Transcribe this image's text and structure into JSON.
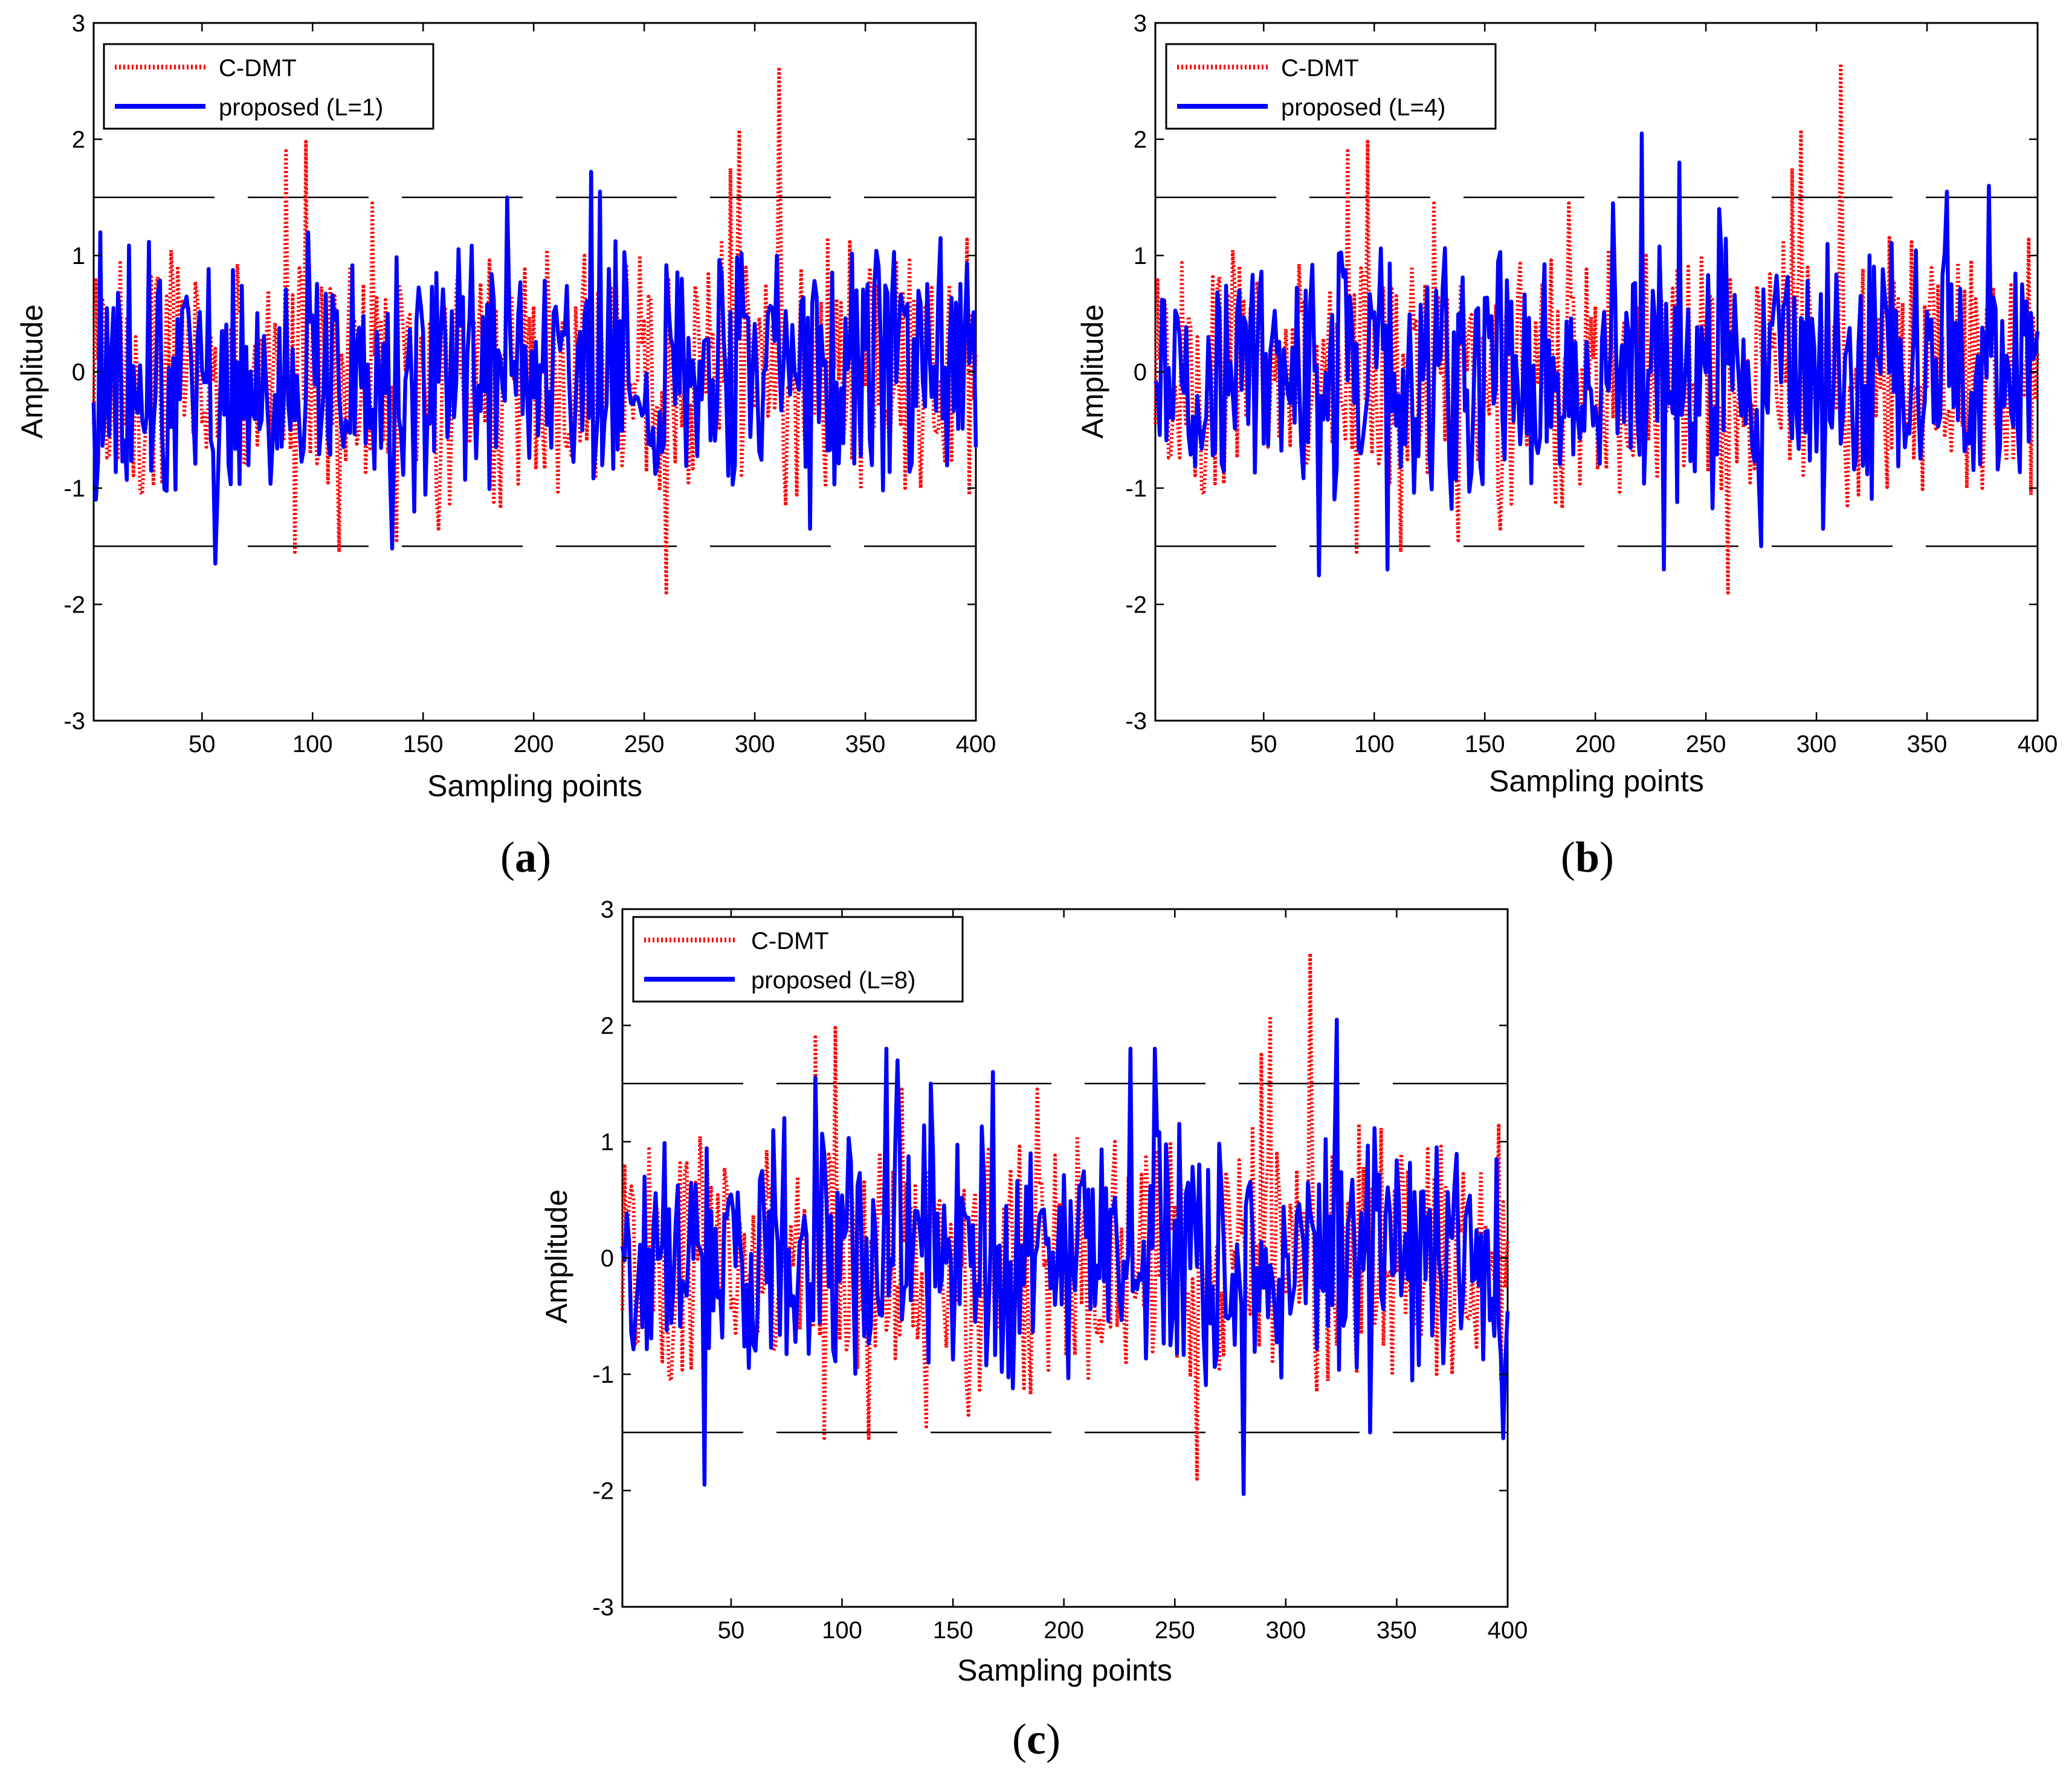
{
  "figure": {
    "panels": [
      {
        "id": "a",
        "caption": {
          "open": "(",
          "letter": "a",
          "close": ")"
        },
        "legend": [
          "C-DMT",
          "proposed (L=1)"
        ]
      },
      {
        "id": "b",
        "caption": {
          "open": "(",
          "letter": "b",
          "close": ")"
        },
        "legend": [
          "C-DMT",
          "proposed (L=4)"
        ]
      },
      {
        "id": "c",
        "caption": {
          "open": "(",
          "letter": "c",
          "close": ")"
        },
        "legend": [
          "C-DMT",
          "proposed (L=8)"
        ]
      }
    ],
    "colors": {
      "cdmt": "#ff0000",
      "proposed": "#0000ff",
      "threshold": "#000000",
      "axes": "#000000"
    }
  },
  "chart_data": [
    {
      "type": "line",
      "title": "",
      "xlabel": "Sampling points",
      "ylabel": "Amplitude",
      "xlim": [
        1,
        400
      ],
      "ylim": [
        -3,
        3
      ],
      "xticks": [
        50,
        100,
        150,
        200,
        250,
        300,
        350,
        400
      ],
      "yticks": [
        -3,
        -2,
        -1,
        0,
        1,
        2,
        3
      ],
      "legend": "top-left",
      "thresholds": [
        1.5,
        -1.5
      ],
      "series": [
        {
          "name": "C-DMT",
          "style": "dotted",
          "color": "#ff0000",
          "seed": 101,
          "peaks": [
            [
              88,
              1.9
            ],
            [
              92,
              -1.55
            ],
            [
              97,
              1.98
            ],
            [
              112,
              -1.55
            ],
            [
              127,
              1.45
            ],
            [
              138,
              -1.45
            ],
            [
              157,
              -1.35
            ],
            [
              188,
              1.45
            ],
            [
              223,
              1.0
            ],
            [
              248,
              1.0
            ],
            [
              260,
              -1.9
            ],
            [
              289,
              1.75
            ],
            [
              293,
              2.08
            ],
            [
              311,
              2.62
            ],
            [
              314,
              -1.15
            ]
          ]
        },
        {
          "name": "proposed (L=1)",
          "style": "solid",
          "color": "#0000ff",
          "seed": 202,
          "peaks": [
            [
              2,
              -1.1
            ],
            [
              4,
              1.2
            ],
            [
              56,
              -1.65
            ],
            [
              98,
              1.2
            ],
            [
              136,
              -1.52
            ],
            [
              188,
              1.5
            ],
            [
              226,
              1.72
            ],
            [
              230,
              1.55
            ],
            [
              310,
              1.0
            ],
            [
              325,
              -1.35
            ],
            [
              384,
              1.15
            ]
          ]
        }
      ]
    },
    {
      "type": "line",
      "title": "",
      "xlabel": "Sampling points",
      "ylabel": "Amplitude",
      "xlim": [
        1,
        400
      ],
      "ylim": [
        -3,
        3
      ],
      "xticks": [
        50,
        100,
        150,
        200,
        250,
        300,
        350,
        400
      ],
      "yticks": [
        -3,
        -2,
        -1,
        0,
        1,
        2,
        3
      ],
      "legend": "top-left",
      "thresholds": [
        1.5,
        -1.5
      ],
      "series": [
        {
          "name": "C-DMT",
          "style": "dotted",
          "color": "#ff0000",
          "seed": 101,
          "peaks": [
            [
              88,
              1.9
            ],
            [
              92,
              -1.55
            ],
            [
              97,
              1.98
            ],
            [
              112,
              -1.55
            ],
            [
              127,
              1.45
            ],
            [
              138,
              -1.45
            ],
            [
              157,
              -1.35
            ],
            [
              188,
              1.45
            ],
            [
              223,
              1.0
            ],
            [
              248,
              1.0
            ],
            [
              260,
              -1.9
            ],
            [
              289,
              1.75
            ],
            [
              293,
              2.08
            ],
            [
              311,
              2.65
            ],
            [
              314,
              -1.15
            ]
          ]
        },
        {
          "name": "proposed (L=4)",
          "style": "solid",
          "color": "#0000ff",
          "seed": 303,
          "peaks": [
            [
              75,
              -1.75
            ],
            [
              106,
              -1.7
            ],
            [
              208,
              1.45
            ],
            [
              221,
              2.05
            ],
            [
              231,
              -1.7
            ],
            [
              238,
              1.8
            ],
            [
              256,
              1.4
            ],
            [
              275,
              -1.5
            ],
            [
              303,
              -1.35
            ],
            [
              359,
              1.55
            ],
            [
              378,
              1.6
            ],
            [
              396,
              -0.6
            ]
          ]
        }
      ]
    },
    {
      "type": "line",
      "title": "",
      "xlabel": "Sampling points",
      "ylabel": "Amplitude",
      "xlim": [
        1,
        400
      ],
      "ylim": [
        -3,
        3
      ],
      "xticks": [
        50,
        100,
        150,
        200,
        250,
        300,
        350,
        400
      ],
      "yticks": [
        -3,
        -2,
        -1,
        0,
        1,
        2,
        3
      ],
      "legend": "top-left",
      "thresholds": [
        1.5,
        -1.5
      ],
      "series": [
        {
          "name": "C-DMT",
          "style": "dotted",
          "color": "#ff0000",
          "seed": 101,
          "peaks": [
            [
              88,
              1.9
            ],
            [
              92,
              -1.55
            ],
            [
              97,
              1.98
            ],
            [
              112,
              -1.55
            ],
            [
              127,
              1.45
            ],
            [
              138,
              -1.45
            ],
            [
              157,
              -1.35
            ],
            [
              188,
              1.45
            ],
            [
              223,
              1.0
            ],
            [
              248,
              1.0
            ],
            [
              260,
              -1.9
            ],
            [
              289,
              1.75
            ],
            [
              293,
              2.08
            ],
            [
              311,
              2.62
            ],
            [
              314,
              -1.15
            ]
          ]
        },
        {
          "name": "proposed (L=8)",
          "style": "solid",
          "color": "#0000ff",
          "seed": 404,
          "peaks": [
            [
              38,
              -1.95
            ],
            [
              88,
              1.55
            ],
            [
              120,
              1.8
            ],
            [
              125,
              1.7
            ],
            [
              140,
              1.5
            ],
            [
              168,
              1.6
            ],
            [
              230,
              1.8
            ],
            [
              241,
              1.8
            ],
            [
              281,
              -2.03
            ],
            [
              323,
              2.05
            ],
            [
              338,
              -1.5
            ],
            [
              398,
              -1.55
            ]
          ]
        }
      ]
    }
  ]
}
